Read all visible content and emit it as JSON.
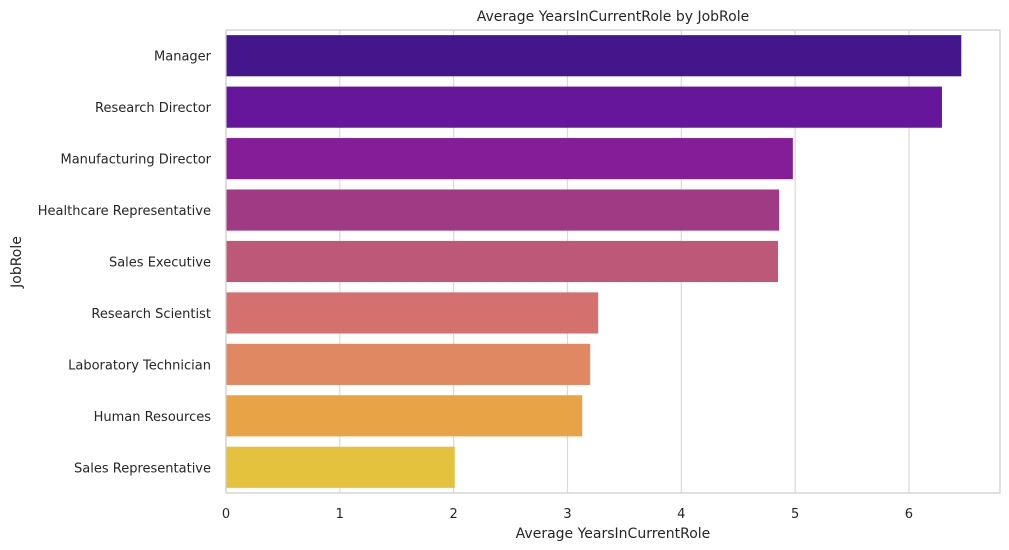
{
  "chart_data": {
    "type": "bar",
    "orientation": "horizontal",
    "title": "Average YearsInCurrentRole by JobRole",
    "xlabel": "Average YearsInCurrentRole",
    "ylabel": "JobRole",
    "xlim": [
      0,
      6.8
    ],
    "xticks": [
      0,
      1,
      2,
      3,
      4,
      5,
      6
    ],
    "grid": true,
    "categories": [
      "Manager",
      "Research Director",
      "Manufacturing Director",
      "Healthcare Representative",
      "Sales Executive",
      "Research Scientist",
      "Laboratory Technician",
      "Human Resources",
      "Sales Representative"
    ],
    "values": [
      6.46,
      6.29,
      4.98,
      4.86,
      4.85,
      3.27,
      3.2,
      3.13,
      2.01
    ],
    "colors": [
      "#43168c",
      "#65169a",
      "#851c98",
      "#a03a84",
      "#bd5878",
      "#d4716f",
      "#e08862",
      "#e7a345",
      "#e4c23d"
    ]
  }
}
